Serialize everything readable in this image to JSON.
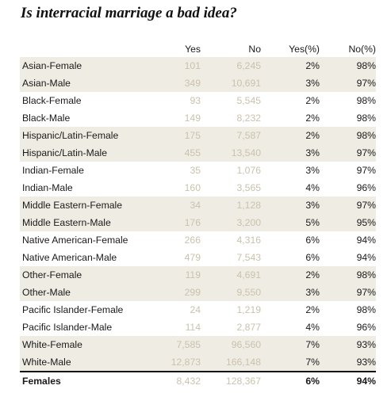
{
  "chart_data": {
    "type": "table",
    "title": "Is interracial marriage a bad idea?",
    "columns": [
      "",
      "Yes",
      "No",
      "Yes(%)",
      "No(%)"
    ],
    "rows": [
      [
        "Asian-Female",
        "101",
        "6,245",
        "2%",
        "98%"
      ],
      [
        "Asian-Male",
        "349",
        "10,691",
        "3%",
        "97%"
      ],
      [
        "Black-Female",
        "93",
        "5,545",
        "2%",
        "98%"
      ],
      [
        "Black-Male",
        "149",
        "8,232",
        "2%",
        "98%"
      ],
      [
        "Hispanic/Latin-Female",
        "175",
        "7,587",
        "2%",
        "98%"
      ],
      [
        "Hispanic/Latin-Male",
        "455",
        "13,540",
        "3%",
        "97%"
      ],
      [
        "Indian-Female",
        "35",
        "1,076",
        "3%",
        "97%"
      ],
      [
        "Indian-Male",
        "160",
        "3,565",
        "4%",
        "96%"
      ],
      [
        "Middle Eastern-Female",
        "34",
        "1,128",
        "3%",
        "97%"
      ],
      [
        "Middle Eastern-Male",
        "176",
        "3,200",
        "5%",
        "95%"
      ],
      [
        "Native American-Female",
        "266",
        "4,316",
        "6%",
        "94%"
      ],
      [
        "Native American-Male",
        "479",
        "7,543",
        "6%",
        "94%"
      ],
      [
        "Other-Female",
        "119",
        "4,691",
        "2%",
        "98%"
      ],
      [
        "Other-Male",
        "299",
        "9,550",
        "3%",
        "97%"
      ],
      [
        "Pacific Islander-Female",
        "24",
        "1,219",
        "2%",
        "98%"
      ],
      [
        "Pacific Islander-Male",
        "114",
        "2,877",
        "4%",
        "96%"
      ],
      [
        "White-Female",
        "7,585",
        "96,560",
        "7%",
        "93%"
      ],
      [
        "White-Male",
        "12,873",
        "166,148",
        "7%",
        "93%"
      ]
    ],
    "total": [
      "Females",
      "8,432",
      "128,367",
      "6%",
      "94%"
    ],
    "colors": {
      "shade": "#efece3",
      "count_text": "#c9c2ad",
      "text": "#1a1a1a"
    }
  }
}
